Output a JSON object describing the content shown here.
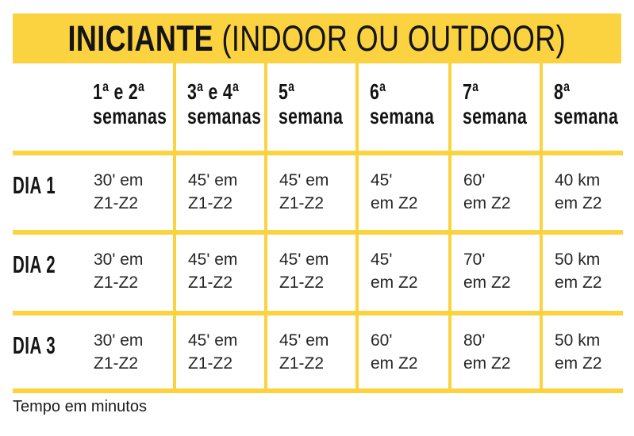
{
  "colors": {
    "accent_yellow": "#FBD23F",
    "title_ink": "#141414",
    "cell_ink": "#262626"
  },
  "banner": {
    "title_bold": "INICIANTE",
    "title_rest": " (INDOOR OU OUTDOOR)"
  },
  "table": {
    "column_headers": [
      {
        "l1": "1ª e 2ª",
        "l2": "semanas"
      },
      {
        "l1": "3ª e 4ª",
        "l2": "semanas"
      },
      {
        "l1": "5ª",
        "l2": "semana"
      },
      {
        "l1": "6ª",
        "l2": "semana"
      },
      {
        "l1": "7ª",
        "l2": "semana"
      },
      {
        "l1": "8ª",
        "l2": "semana"
      }
    ],
    "rows": [
      {
        "label": "DIA 1",
        "cells": [
          {
            "l1": "30' em",
            "l2": "Z1-Z2"
          },
          {
            "l1": "45' em",
            "l2": "Z1-Z2"
          },
          {
            "l1": "45' em",
            "l2": "Z1-Z2"
          },
          {
            "l1": "45'",
            "l2": "em Z2"
          },
          {
            "l1": "60'",
            "l2": "em Z2"
          },
          {
            "l1": "40 km",
            "l2": "em Z2"
          }
        ]
      },
      {
        "label": "DIA 2",
        "cells": [
          {
            "l1": "30' em",
            "l2": "Z1-Z2"
          },
          {
            "l1": "45' em",
            "l2": "Z1-Z2"
          },
          {
            "l1": "45' em",
            "l2": "Z1-Z2"
          },
          {
            "l1": "45'",
            "l2": "em Z2"
          },
          {
            "l1": "70'",
            "l2": "em Z2"
          },
          {
            "l1": "50 km",
            "l2": "em Z2"
          }
        ]
      },
      {
        "label": "DIA 3",
        "cells": [
          {
            "l1": "30' em",
            "l2": "Z1-Z2"
          },
          {
            "l1": "45' em",
            "l2": "Z1-Z2"
          },
          {
            "l1": "45' em",
            "l2": "Z1-Z2"
          },
          {
            "l1": "60'",
            "l2": "em Z2"
          },
          {
            "l1": "80'",
            "l2": "em Z2"
          },
          {
            "l1": "50 km",
            "l2": "em Z2"
          }
        ]
      }
    ]
  },
  "footer": {
    "note": "Tempo em minutos"
  },
  "chart_data": {
    "type": "table",
    "title": "INICIANTE (INDOOR OU OUTDOOR)",
    "columns": [
      "",
      "1ª e 2ª semanas",
      "3ª e 4ª semanas",
      "5ª semana",
      "6ª semana",
      "7ª semana",
      "8ª semana"
    ],
    "rows": [
      [
        "DIA 1",
        "30' em Z1-Z2",
        "45' em Z1-Z2",
        "45' em Z1-Z2",
        "45' em Z2",
        "60' em Z2",
        "40 km em Z2"
      ],
      [
        "DIA 2",
        "30' em Z1-Z2",
        "45' em Z1-Z2",
        "45' em Z1-Z2",
        "45' em Z2",
        "70' em Z2",
        "50 km em Z2"
      ],
      [
        "DIA 3",
        "30' em Z1-Z2",
        "45' em Z1-Z2",
        "45' em Z1-Z2",
        "60' em Z2",
        "80' em Z2",
        "50 km em Z2"
      ]
    ],
    "note": "Tempo em minutos",
    "layout": {
      "grid": "yellow rules",
      "header_row": true,
      "label_column": true
    }
  }
}
